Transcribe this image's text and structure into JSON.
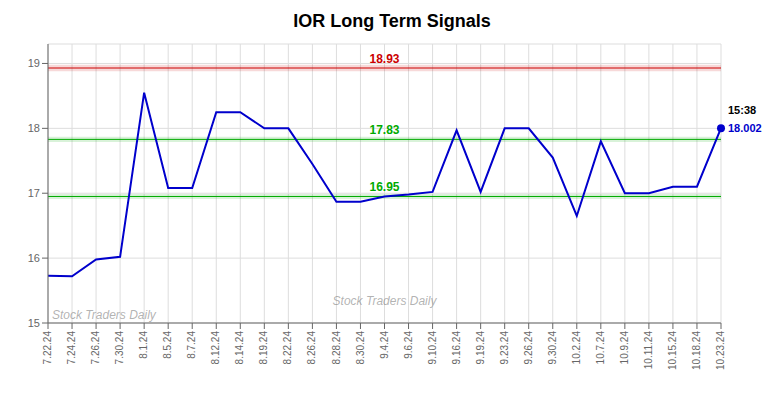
{
  "chart_data": {
    "type": "line",
    "title": "IOR Long Term Signals",
    "categories": [
      "7.22.24",
      "7.24.24",
      "7.26.24",
      "7.30.24",
      "8.1.24",
      "8.5.24",
      "8.7.24",
      "8.12.24",
      "8.14.24",
      "8.19.24",
      "8.22.24",
      "8.26.24",
      "8.28.24",
      "8.30.24",
      "9.4.24",
      "9.6.24",
      "9.10.24",
      "9.16.24",
      "9.19.24",
      "9.23.24",
      "9.26.24",
      "9.30.24",
      "10.2.24",
      "10.7.24",
      "10.9.24",
      "10.11.24",
      "10.15.24",
      "10.18.24",
      "10.23.24"
    ],
    "values": [
      15.73,
      15.72,
      15.98,
      16.02,
      18.55,
      17.08,
      17.08,
      18.25,
      18.25,
      18.0,
      18.0,
      17.45,
      16.87,
      16.87,
      16.95,
      16.98,
      17.02,
      17.97,
      17.02,
      18.0,
      18.0,
      17.55,
      16.65,
      17.8,
      17.0,
      17.0,
      17.1,
      17.1,
      18.002
    ],
    "color": "#0000cc",
    "ylim": [
      15.0,
      19.3
    ],
    "yticks": [
      15,
      16,
      17,
      18,
      19
    ],
    "grid": true,
    "hlines": [
      {
        "value": 18.93,
        "label": "18.93",
        "color": "#cc0000",
        "band_half": 0.05
      },
      {
        "value": 17.83,
        "label": "17.83",
        "color": "#00aa00",
        "band_half": 0.04
      },
      {
        "value": 16.95,
        "label": "16.95",
        "color": "#00aa00",
        "band_half": 0.04
      }
    ],
    "last_point": {
      "time_label": "15:38",
      "value_label": "18.002"
    },
    "watermark": [
      "Stock Traders Daily",
      "Stock Traders Daily"
    ]
  }
}
